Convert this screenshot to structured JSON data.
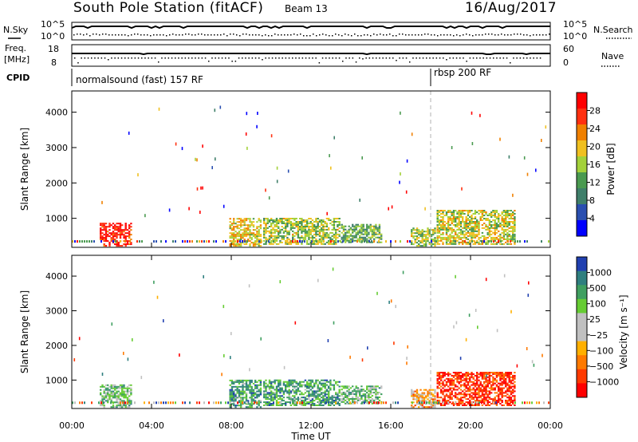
{
  "header": {
    "station": "South Pole Station (fitACF)",
    "beam": "Beam 13",
    "date": "16/Aug/2017"
  },
  "top_panels": {
    "nsky_label": "N.Sky",
    "nsky_ticks": [
      "10^5",
      "10^0"
    ],
    "nsearch_label": "N.Search",
    "nsearch_ticks": [
      "10^5",
      "10^0"
    ],
    "freq_label_line1": "Freq.",
    "freq_label_line2": "[MHz]",
    "freq_ticks": [
      "18",
      "8"
    ],
    "nave_label": "Nave",
    "nave_ticks": [
      "60",
      "0"
    ],
    "cpid_label": "CPID",
    "cpid_segments": [
      {
        "text": "normalsound (fast) 157 RF",
        "start_hour": 0
      },
      {
        "text": "rbsp 200 RF",
        "start_hour": 18
      }
    ]
  },
  "x_axis": {
    "title": "Time UT",
    "ticks": [
      "00:00",
      "04:00",
      "08:00",
      "12:00",
      "16:00",
      "20:00",
      "00:00"
    ],
    "range_hours": [
      0,
      24
    ]
  },
  "chart_data": [
    {
      "type": "heatmap",
      "quantity": "power",
      "ylabel": "Slant Range [km]",
      "ylim": [
        180,
        4600
      ],
      "yticks": [
        "1000",
        "2000",
        "3000",
        "4000"
      ],
      "colorbar_label": "Power [dB]",
      "colorbar_ticks": [
        "28",
        "24",
        "20",
        "16",
        "12",
        "8",
        "4"
      ],
      "colorscale": [
        "#0000ff",
        "#2a4fb0",
        "#3f7f6a",
        "#4a9a50",
        "#a3d13a",
        "#f0c020",
        "#f08000",
        "#ff3010",
        "#ff0000"
      ],
      "regions": [
        {
          "t0": 1.4,
          "t1": 3.0,
          "r0": 200,
          "r1": 850,
          "level": 0.9
        },
        {
          "t0": 7.9,
          "t1": 9.5,
          "r0": 200,
          "r1": 1000,
          "level": 0.6
        },
        {
          "t0": 9.6,
          "t1": 13.4,
          "r0": 250,
          "r1": 1000,
          "level": 0.5
        },
        {
          "t0": 13.5,
          "t1": 15.5,
          "r0": 300,
          "r1": 800,
          "level": 0.4
        },
        {
          "t0": 17.0,
          "t1": 18.2,
          "r0": 200,
          "r1": 700,
          "level": 0.5
        },
        {
          "t0": 18.3,
          "t1": 22.2,
          "r0": 250,
          "r1": 1200,
          "level": 0.55
        }
      ]
    },
    {
      "type": "heatmap",
      "quantity": "velocity",
      "ylabel": "Slant Range [km]",
      "ylim": [
        180,
        4600
      ],
      "yticks": [
        "1000",
        "2000",
        "3000",
        "4000"
      ],
      "colorbar_label": "Velocity [m s⁻¹]",
      "colorbar_ticks": [
        "1000",
        "500",
        "100",
        "25",
        "−25",
        "−100",
        "−500",
        "−1000"
      ],
      "colorscale": [
        "#ff0000",
        "#ff3a00",
        "#ff7a00",
        "#ffb000",
        "#c0c0c0",
        "#c0c0c0",
        "#66cc33",
        "#3f9f60",
        "#2f7f7f",
        "#2040b0"
      ],
      "regions": [
        {
          "t0": 1.4,
          "t1": 3.0,
          "r0": 200,
          "r1": 850,
          "level": 0.65
        },
        {
          "t0": 7.9,
          "t1": 9.5,
          "r0": 200,
          "r1": 1000,
          "level": 0.75
        },
        {
          "t0": 9.6,
          "t1": 13.4,
          "r0": 250,
          "r1": 1000,
          "level": 0.75
        },
        {
          "t0": 13.5,
          "t1": 15.5,
          "r0": 300,
          "r1": 800,
          "level": 0.65
        },
        {
          "t0": 17.0,
          "t1": 18.2,
          "r0": 200,
          "r1": 700,
          "level": 0.35
        },
        {
          "t0": 18.3,
          "t1": 22.2,
          "r0": 250,
          "r1": 1200,
          "level": 0.1
        }
      ]
    }
  ]
}
